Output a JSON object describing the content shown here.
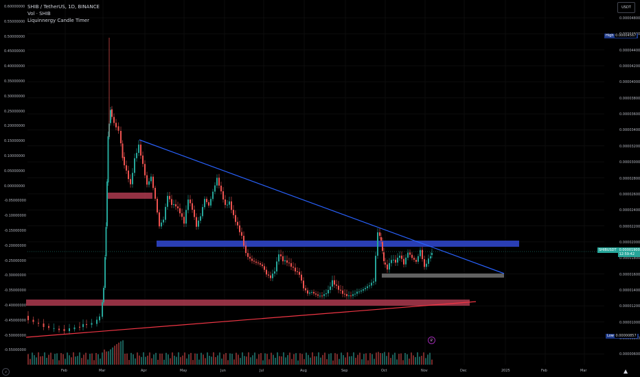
{
  "legend": {
    "symbol_line": "SHIB / TetherUS, 1D, BINANCE",
    "volume_line": "Vol · SHIB",
    "indicator_line": "Liquinnergy Candle Timer"
  },
  "left_axis_labels": [
    "0.60000000",
    "0.55000000",
    "0.50000000",
    "0.45000000",
    "0.40000000",
    "0.35000000",
    "0.30000000",
    "0.25000000",
    "0.20000000",
    "0.15000000",
    "0.10000000",
    "0.05000000",
    "0.00000000",
    "-0.05000000",
    "-0.10000000",
    "-0.15000000",
    "-0.20000000",
    "-0.25000000",
    "-0.30000000",
    "-0.35000000",
    "-0.40000000",
    "-0.45000000",
    "-0.50000000",
    "-0.55000000"
  ],
  "right_axis_labels": [
    "0.00004800",
    "0.00004600",
    "0.00004400",
    "0.00004200",
    "0.00004000",
    "0.00003800",
    "0.00003600",
    "0.00003400",
    "0.00003200",
    "0.00003000",
    "0.00002800",
    "0.00002600",
    "0.00002400",
    "0.00002200",
    "0.00002000",
    "0.00001800",
    "0.00001600",
    "0.00001400",
    "0.00001200",
    "0.00001000",
    "0.00000800",
    "0.00000600"
  ],
  "x_axis_labels": [
    "Feb",
    "Mar",
    "Apr",
    "May",
    "Jun",
    "Jul",
    "Aug",
    "Sep",
    "Oct",
    "Nov",
    "Dec",
    "2025",
    "Feb",
    "Mar"
  ],
  "currency": "USDT",
  "high_badge": {
    "label": "High",
    "value": "0.00004567"
  },
  "low_badge": {
    "label": "Low",
    "value": "0.00000857"
  },
  "last_price": {
    "symbol": "SHIBUSDT",
    "value": "0.00001900",
    "countdown": "12:59:42"
  },
  "colors": {
    "up": "#26a69a",
    "down": "#ef5350",
    "trend_blue": "#2962ff",
    "trend_red": "#f23645",
    "zone_blue": "#2f45c8",
    "zone_red": "#c4415a",
    "zone_gray": "#6b6b6b",
    "last_price_badge": "#26a69a",
    "high_low_badge": "#1e3a8a"
  },
  "icons": {
    "timezone": "gear-icon",
    "logo": "tradingview-logo-icon",
    "event": "dividend-marker-icon"
  }
}
